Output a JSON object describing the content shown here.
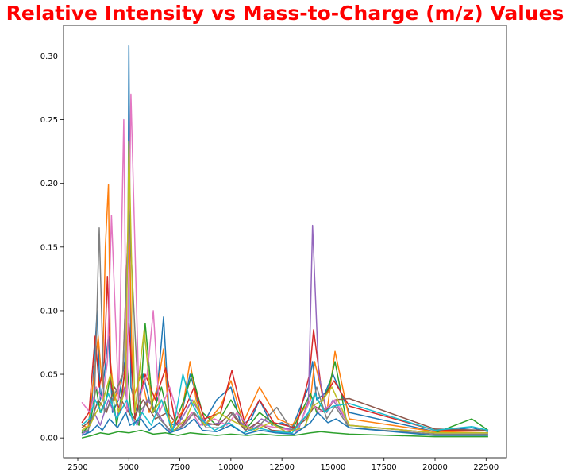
{
  "chart_data": {
    "type": "line",
    "title": "Relative Intensity vs Mass-to-Charge (m/z) Values",
    "xlabel": "",
    "ylabel": "",
    "xlim": [
      1800,
      23500
    ],
    "ylim": [
      -0.0155,
      0.324
    ],
    "xticks": [
      2500,
      5000,
      7500,
      10000,
      12500,
      15000,
      17500,
      20000,
      22500
    ],
    "xtick_labels": [
      "2500",
      "5000",
      "7500",
      "10000",
      "12500",
      "15000",
      "17500",
      "20000",
      "22500"
    ],
    "yticks": [
      0.0,
      0.05,
      0.1,
      0.15,
      0.2,
      0.25,
      0.3
    ],
    "ytick_labels": [
      "0.00",
      "0.05",
      "0.10",
      "0.15",
      "0.20",
      "0.25",
      "0.30"
    ],
    "grid": false,
    "legend": "none",
    "series_count_note_hidden": true,
    "series": [
      {
        "color": "#1f77b4",
        "x": [
          2700,
          3000,
          3200,
          3300,
          3450,
          3600,
          3800,
          4000,
          4200,
          4500,
          4800,
          4960,
          5000,
          5100,
          5400,
          5700,
          6000,
          6300,
          6700,
          7000,
          7500,
          8000,
          8300,
          8600,
          9300,
          10000,
          10500,
          11000,
          11400,
          12000,
          12500,
          13000,
          13800,
          14000,
          14200,
          14600,
          15000,
          15800,
          20000,
          21800,
          22600
        ],
        "y": [
          0.006,
          0.004,
          0.03,
          0.06,
          0.1,
          0.03,
          0.05,
          0.08,
          0.02,
          0.03,
          0.06,
          0.15,
          0.308,
          0.04,
          0.02,
          0.05,
          0.03,
          0.02,
          0.095,
          0.01,
          0.012,
          0.05,
          0.035,
          0.01,
          0.03,
          0.04,
          0.01,
          0.015,
          0.03,
          0.01,
          0.012,
          0.008,
          0.04,
          0.06,
          0.03,
          0.035,
          0.05,
          0.02,
          0.005,
          0.008,
          0.005
        ]
      },
      {
        "color": "#ff7f0e",
        "x": [
          2700,
          3000,
          3300,
          3500,
          3700,
          3850,
          4000,
          4100,
          4300,
          4700,
          5000,
          5200,
          5600,
          6000,
          6400,
          6700,
          7000,
          7600,
          8000,
          8300,
          8700,
          9500,
          10000,
          10600,
          11400,
          12300,
          13000,
          13900,
          14100,
          14700,
          15100,
          15800,
          20000,
          22600
        ],
        "y": [
          0.01,
          0.008,
          0.05,
          0.08,
          0.04,
          0.15,
          0.199,
          0.06,
          0.03,
          0.05,
          0.18,
          0.03,
          0.05,
          0.02,
          0.04,
          0.07,
          0.01,
          0.02,
          0.06,
          0.03,
          0.01,
          0.025,
          0.045,
          0.012,
          0.04,
          0.015,
          0.01,
          0.03,
          0.06,
          0.02,
          0.068,
          0.015,
          0.005,
          0.004
        ]
      },
      {
        "color": "#2ca02c",
        "x": [
          2700,
          3100,
          3400,
          3600,
          3900,
          4100,
          4400,
          4900,
          5100,
          5500,
          5800,
          6200,
          6600,
          7100,
          7700,
          8100,
          8600,
          9300,
          10000,
          10800,
          11400,
          12200,
          13000,
          13900,
          14200,
          14800,
          15100,
          15700,
          20000,
          21800,
          22600
        ],
        "y": [
          0.004,
          0.01,
          0.04,
          0.02,
          0.03,
          0.05,
          0.01,
          0.06,
          0.02,
          0.01,
          0.09,
          0.02,
          0.04,
          0.005,
          0.03,
          0.05,
          0.02,
          0.01,
          0.03,
          0.008,
          0.02,
          0.01,
          0.006,
          0.035,
          0.02,
          0.04,
          0.06,
          0.01,
          0.004,
          0.015,
          0.006
        ]
      },
      {
        "color": "#d62728",
        "x": [
          2700,
          3050,
          3350,
          3550,
          3800,
          3950,
          4150,
          4600,
          5000,
          5300,
          5800,
          6300,
          6800,
          7300,
          7800,
          8200,
          8700,
          9500,
          10050,
          10700,
          11400,
          12100,
          13200,
          13850,
          14050,
          14500,
          15050,
          15800,
          20000,
          22600
        ],
        "y": [
          0.012,
          0.02,
          0.08,
          0.04,
          0.06,
          0.127,
          0.04,
          0.02,
          0.09,
          0.015,
          0.05,
          0.03,
          0.055,
          0.01,
          0.025,
          0.04,
          0.015,
          0.02,
          0.053,
          0.01,
          0.03,
          0.012,
          0.008,
          0.05,
          0.085,
          0.03,
          0.045,
          0.025,
          0.006,
          0.006
        ]
      },
      {
        "color": "#9467bd",
        "x": [
          2700,
          3000,
          3300,
          3600,
          4000,
          4400,
          4800,
          5000,
          5400,
          5900,
          6400,
          7000,
          7600,
          8100,
          8800,
          9500,
          10000,
          10900,
          11500,
          12400,
          13300,
          13800,
          14000,
          14300,
          14700,
          15000,
          15800,
          20000,
          22600
        ],
        "y": [
          0.003,
          0.006,
          0.02,
          0.01,
          0.03,
          0.015,
          0.04,
          0.02,
          0.01,
          0.03,
          0.02,
          0.005,
          0.015,
          0.03,
          0.01,
          0.012,
          0.02,
          0.006,
          0.015,
          0.008,
          0.006,
          0.03,
          0.167,
          0.05,
          0.02,
          0.03,
          0.01,
          0.004,
          0.004
        ]
      },
      {
        "color": "#8c564b",
        "x": [
          2700,
          3200,
          3500,
          3900,
          4300,
          4800,
          5200,
          5700,
          6300,
          6900,
          7500,
          8100,
          8700,
          9400,
          10000,
          10700,
          11300,
          12000,
          12900,
          13700,
          14100,
          14600,
          15100,
          15800,
          20000,
          22600
        ],
        "y": [
          0.008,
          0.015,
          0.03,
          0.02,
          0.04,
          0.025,
          0.015,
          0.03,
          0.015,
          0.02,
          0.008,
          0.02,
          0.012,
          0.01,
          0.02,
          0.006,
          0.012,
          0.006,
          0.005,
          0.015,
          0.025,
          0.02,
          0.03,
          0.031,
          0.007,
          0.006
        ]
      },
      {
        "color": "#e377c2",
        "x": [
          2700,
          3100,
          3400,
          3700,
          3950,
          4150,
          4500,
          4750,
          4900,
          5100,
          5500,
          5900,
          6200,
          6500,
          7000,
          7600,
          8100,
          8500,
          9200,
          9800,
          10300,
          11000,
          11500,
          12300,
          13200,
          13900,
          14300,
          14800,
          15100,
          15800,
          20000,
          22600
        ],
        "y": [
          0.028,
          0.02,
          0.04,
          0.03,
          0.06,
          0.175,
          0.03,
          0.25,
          0.02,
          0.27,
          0.03,
          0.05,
          0.1,
          0.02,
          0.04,
          0.008,
          0.02,
          0.01,
          0.015,
          0.01,
          0.02,
          0.006,
          0.01,
          0.008,
          0.005,
          0.03,
          0.02,
          0.025,
          0.03,
          0.01,
          0.004,
          0.004
        ]
      },
      {
        "color": "#7f7f7f",
        "x": [
          2700,
          3000,
          3300,
          3550,
          3800,
          4200,
          4700,
          5000,
          5500,
          6000,
          6500,
          7100,
          7700,
          8200,
          8800,
          9600,
          10100,
          10800,
          11400,
          12250,
          13000,
          13900,
          14200,
          14700,
          15100,
          15800,
          20000,
          22600
        ],
        "y": [
          0.005,
          0.006,
          0.02,
          0.165,
          0.02,
          0.03,
          0.05,
          0.18,
          0.02,
          0.03,
          0.015,
          0.005,
          0.01,
          0.02,
          0.008,
          0.008,
          0.02,
          0.005,
          0.01,
          0.024,
          0.006,
          0.02,
          0.04,
          0.015,
          0.025,
          0.008,
          0.003,
          0.003
        ]
      },
      {
        "color": "#bcbd22",
        "x": [
          2700,
          3100,
          3400,
          3750,
          4100,
          4500,
          4850,
          5000,
          5300,
          5750,
          6150,
          6600,
          7200,
          7800,
          8200,
          8700,
          9400,
          9900,
          10500,
          11200,
          11900,
          12700,
          13600,
          14000,
          14500,
          14950,
          15800,
          20000,
          22600
        ],
        "y": [
          0.006,
          0.01,
          0.02,
          0.03,
          0.05,
          0.02,
          0.04,
          0.233,
          0.02,
          0.085,
          0.02,
          0.03,
          0.006,
          0.015,
          0.03,
          0.01,
          0.02,
          0.015,
          0.01,
          0.006,
          0.012,
          0.005,
          0.008,
          0.025,
          0.03,
          0.04,
          0.01,
          0.004,
          0.004
        ]
      },
      {
        "color": "#17becf",
        "x": [
          2700,
          3050,
          3350,
          3650,
          4000,
          4400,
          4900,
          5250,
          5650,
          6100,
          6600,
          7150,
          7650,
          8000,
          8500,
          9200,
          9900,
          10600,
          11300,
          12100,
          13000,
          13800,
          14100,
          14600,
          15000,
          15800,
          20000,
          21800,
          22600
        ],
        "y": [
          0.01,
          0.015,
          0.03,
          0.02,
          0.035,
          0.015,
          0.03,
          0.01,
          0.02,
          0.01,
          0.03,
          0.005,
          0.05,
          0.03,
          0.015,
          0.006,
          0.012,
          0.004,
          0.008,
          0.005,
          0.004,
          0.02,
          0.035,
          0.02,
          0.025,
          0.027,
          0.006,
          0.009,
          0.006
        ]
      },
      {
        "color": "#1f77b4",
        "x": [
          2700,
          3150,
          3450,
          3700,
          4050,
          4450,
          4850,
          5050,
          5600,
          6000,
          6500,
          7000,
          7700,
          8200,
          8600,
          9300,
          10000,
          10700,
          11450,
          12200,
          13100,
          13900,
          14250,
          14750,
          15150,
          15800,
          20000,
          22600
        ],
        "y": [
          0.002,
          0.005,
          0.01,
          0.006,
          0.015,
          0.008,
          0.02,
          0.01,
          0.015,
          0.006,
          0.012,
          0.004,
          0.008,
          0.015,
          0.006,
          0.005,
          0.01,
          0.003,
          0.006,
          0.004,
          0.003,
          0.012,
          0.02,
          0.012,
          0.015,
          0.008,
          0.002,
          0.002
        ]
      },
      {
        "color": "#2ca02c",
        "x": [
          2700,
          3200,
          3600,
          4000,
          4500,
          5000,
          5600,
          6200,
          6800,
          7400,
          8000,
          8600,
          9300,
          10000,
          10800,
          11500,
          12300,
          13100,
          13900,
          14400,
          15000,
          15800,
          20000,
          21800,
          22600
        ],
        "y": [
          0.0,
          0.002,
          0.004,
          0.003,
          0.005,
          0.004,
          0.006,
          0.003,
          0.004,
          0.002,
          0.004,
          0.003,
          0.002,
          0.003,
          0.002,
          0.003,
          0.002,
          0.002,
          0.004,
          0.005,
          0.004,
          0.003,
          0.001,
          0.001,
          0.001
        ]
      }
    ]
  }
}
